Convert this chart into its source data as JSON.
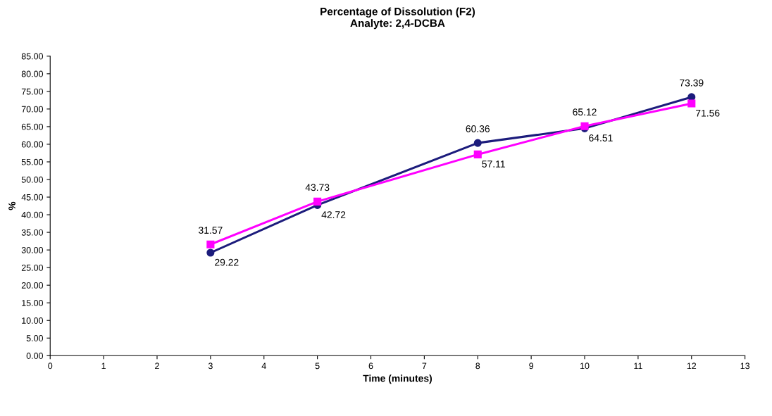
{
  "chart_data": {
    "type": "line",
    "title": "Percentage of Dissolution (F2)\nAnalyte: 2,4-DCBA",
    "xlabel": "Time (minutes)",
    "ylabel": "%",
    "x": [
      3,
      5,
      8,
      10,
      12
    ],
    "series": [
      {
        "color": "#1c1c7c",
        "marker": "circle",
        "values": [
          29.22,
          42.72,
          60.36,
          64.51,
          73.39
        ]
      },
      {
        "color": "#ff00ff",
        "marker": "square",
        "values": [
          31.57,
          43.73,
          57.11,
          65.12,
          71.56
        ]
      }
    ],
    "xlim": [
      0,
      13
    ],
    "xticks": [
      0,
      1,
      2,
      3,
      4,
      5,
      6,
      7,
      8,
      9,
      10,
      11,
      12,
      13
    ],
    "ylim": [
      0,
      85
    ],
    "yticks": [
      {
        "value": 0,
        "label": "0.00"
      },
      {
        "value": 5,
        "label": "5.00"
      },
      {
        "value": 10,
        "label": "10.00"
      },
      {
        "value": 15,
        "label": "15.00"
      },
      {
        "value": 20,
        "label": "20.00"
      },
      {
        "value": 25,
        "label": "25.00"
      },
      {
        "value": 30,
        "label": "30.00"
      },
      {
        "value": 35,
        "label": "35.00"
      },
      {
        "value": 40,
        "label": "40.00"
      },
      {
        "value": 45,
        "label": "45.00"
      },
      {
        "value": 50,
        "label": "50.00"
      },
      {
        "value": 55,
        "label": "55.00"
      },
      {
        "value": 60,
        "label": "60.00"
      },
      {
        "value": 65,
        "label": "65.00"
      },
      {
        "value": 70,
        "label": "70.00"
      },
      {
        "value": 75,
        "label": "75.00"
      },
      {
        "value": 80,
        "label": "80.00"
      },
      {
        "value": 85,
        "label": "85.00"
      }
    ],
    "data_labels": true,
    "grid": false,
    "line_style": "solid"
  }
}
